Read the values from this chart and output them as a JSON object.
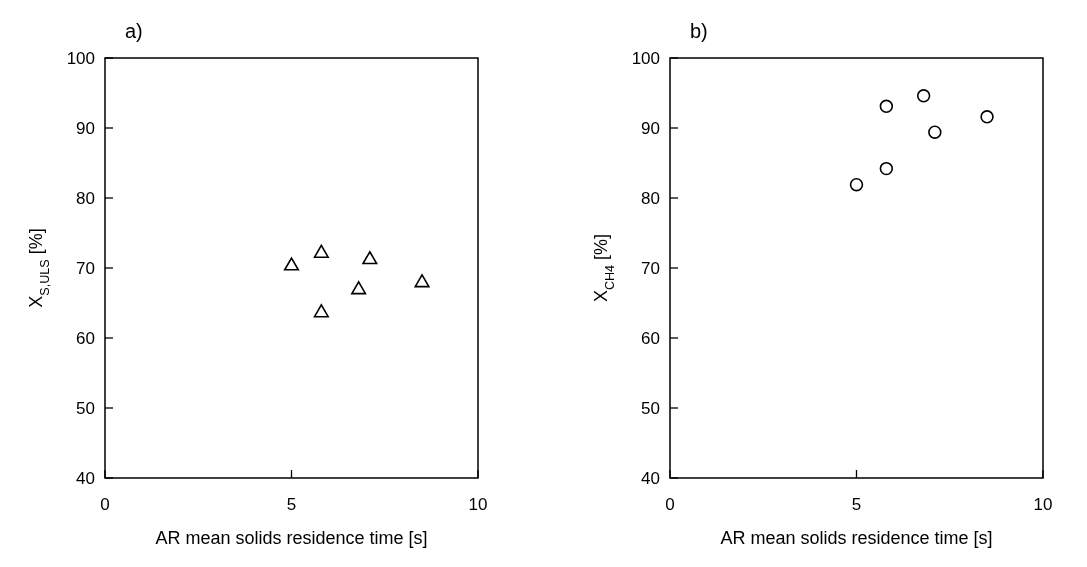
{
  "chart_data": [
    {
      "type": "scatter",
      "title": "a)",
      "xlabel": "AR mean solids residence time [s]",
      "ylabel": "X$_{S,ULS}$ [%]",
      "x": [
        5.0,
        5.8,
        5.8,
        6.8,
        7.1,
        8.5
      ],
      "series": [
        {
          "color": "#000000",
          "marker": "triangle",
          "values": [
            70.3,
            72.1,
            63.6,
            66.9,
            71.2,
            67.9
          ]
        }
      ],
      "xlim": [
        0,
        10
      ],
      "xticks": [
        0,
        5,
        10
      ],
      "ylim": [
        40,
        100
      ],
      "yticks": [
        40,
        50,
        60,
        70,
        80,
        90,
        100
      ],
      "grid": false
    },
    {
      "type": "scatter",
      "title": "b)",
      "xlabel": "AR mean solids residence time [s]",
      "ylabel": "X$_{CH4}$ [%]",
      "x": [
        5.0,
        5.8,
        5.8,
        6.8,
        7.1,
        8.5
      ],
      "series": [
        {
          "color": "#000000",
          "marker": "circle",
          "values": [
            81.9,
            84.2,
            93.1,
            94.6,
            89.4,
            91.6
          ]
        }
      ],
      "xlim": [
        0,
        10
      ],
      "xticks": [
        0,
        5,
        10
      ],
      "ylim": [
        40,
        100
      ],
      "yticks": [
        40,
        50,
        60,
        70,
        80,
        90,
        100
      ],
      "grid": false
    }
  ]
}
